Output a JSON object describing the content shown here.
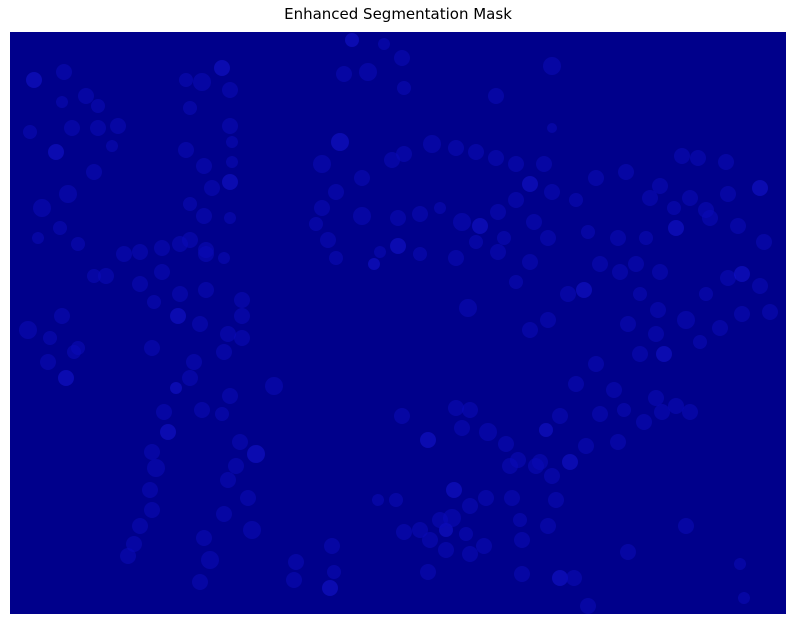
{
  "figure": {
    "title": "Enhanced Segmentation Mask"
  },
  "mask": {
    "background_color": "#00008B",
    "blob_color": "#0b0bb8",
    "blob_color_bright": "#1414d0"
  }
}
